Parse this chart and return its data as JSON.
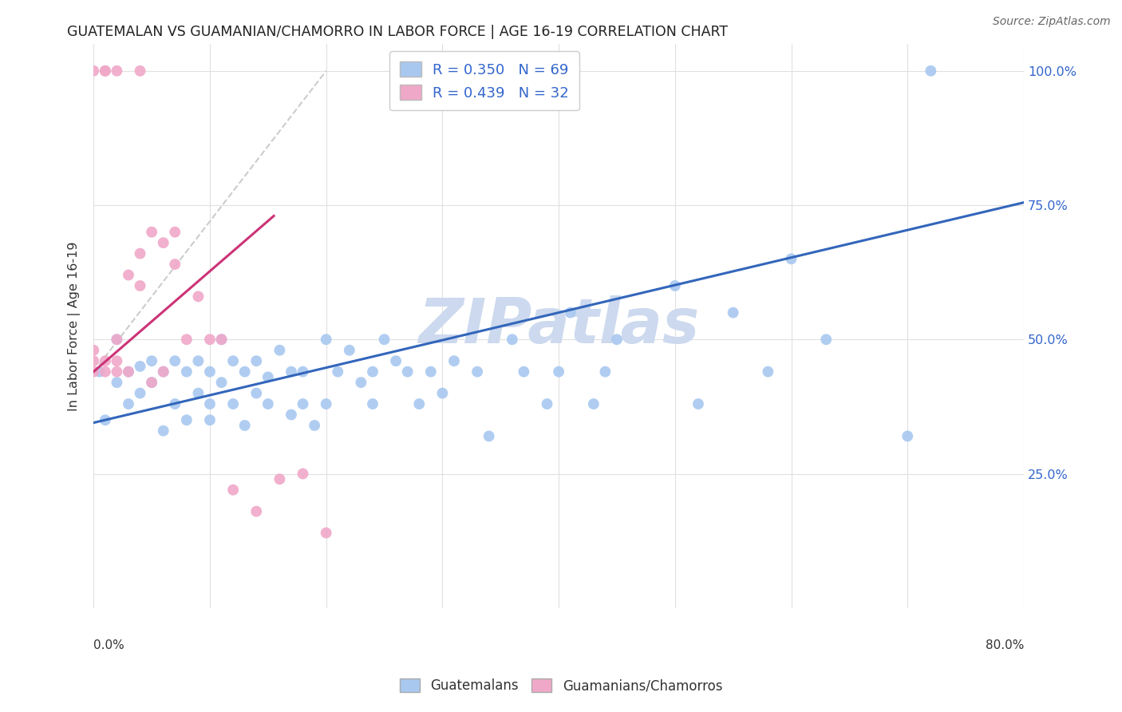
{
  "title": "GUATEMALAN VS GUAMANIAN/CHAMORRO IN LABOR FORCE | AGE 16-19 CORRELATION CHART",
  "source": "Source: ZipAtlas.com",
  "ylabel": "In Labor Force | Age 16-19",
  "xlim": [
    0.0,
    0.8
  ],
  "ylim": [
    0.0,
    1.05
  ],
  "ytick_positions": [
    0.0,
    0.25,
    0.5,
    0.75,
    1.0
  ],
  "ytick_labels": [
    "",
    "25.0%",
    "50.0%",
    "75.0%",
    "100.0%"
  ],
  "background_color": "#ffffff",
  "grid_color": "#e0e0e0",
  "watermark_text": "ZIPatlas",
  "watermark_color": "#ccd9ee",
  "blue_R": 0.35,
  "blue_N": 69,
  "pink_R": 0.439,
  "pink_N": 32,
  "blue_color": "#a8c8f0",
  "pink_color": "#f0a8c8",
  "blue_line_color": "#3366bb",
  "pink_line_color": "#cc3377",
  "dash_line_color": "#cccccc",
  "blue_scatter_x": [
    0.005,
    0.01,
    0.02,
    0.02,
    0.03,
    0.03,
    0.04,
    0.04,
    0.05,
    0.05,
    0.06,
    0.06,
    0.07,
    0.07,
    0.08,
    0.08,
    0.09,
    0.09,
    0.1,
    0.1,
    0.1,
    0.11,
    0.11,
    0.12,
    0.12,
    0.13,
    0.13,
    0.14,
    0.14,
    0.15,
    0.15,
    0.16,
    0.17,
    0.17,
    0.18,
    0.18,
    0.19,
    0.2,
    0.2,
    0.21,
    0.22,
    0.23,
    0.24,
    0.24,
    0.25,
    0.26,
    0.27,
    0.28,
    0.29,
    0.3,
    0.31,
    0.33,
    0.34,
    0.36,
    0.37,
    0.39,
    0.4,
    0.41,
    0.43,
    0.44,
    0.45,
    0.5,
    0.52,
    0.55,
    0.58,
    0.6,
    0.63,
    0.7,
    0.72
  ],
  "blue_scatter_y": [
    0.44,
    0.35,
    0.42,
    0.5,
    0.38,
    0.44,
    0.4,
    0.45,
    0.42,
    0.46,
    0.33,
    0.44,
    0.38,
    0.46,
    0.35,
    0.44,
    0.4,
    0.46,
    0.38,
    0.44,
    0.35,
    0.42,
    0.5,
    0.38,
    0.46,
    0.44,
    0.34,
    0.46,
    0.4,
    0.43,
    0.38,
    0.48,
    0.44,
    0.36,
    0.44,
    0.38,
    0.34,
    0.5,
    0.38,
    0.44,
    0.48,
    0.42,
    0.44,
    0.38,
    0.5,
    0.46,
    0.44,
    0.38,
    0.44,
    0.4,
    0.46,
    0.44,
    0.32,
    0.5,
    0.44,
    0.38,
    0.44,
    0.55,
    0.38,
    0.44,
    0.5,
    0.6,
    0.38,
    0.55,
    0.44,
    0.65,
    0.5,
    0.32,
    1.0
  ],
  "pink_scatter_x": [
    0.0,
    0.0,
    0.0,
    0.0,
    0.01,
    0.01,
    0.01,
    0.01,
    0.02,
    0.02,
    0.02,
    0.02,
    0.03,
    0.03,
    0.04,
    0.04,
    0.04,
    0.05,
    0.05,
    0.06,
    0.06,
    0.07,
    0.07,
    0.08,
    0.09,
    0.1,
    0.11,
    0.12,
    0.14,
    0.16,
    0.18,
    0.2
  ],
  "pink_scatter_y": [
    0.44,
    0.46,
    0.48,
    1.0,
    0.44,
    0.46,
    1.0,
    1.0,
    0.44,
    0.46,
    0.5,
    1.0,
    0.44,
    0.62,
    0.6,
    0.66,
    1.0,
    0.42,
    0.7,
    0.44,
    0.68,
    0.64,
    0.7,
    0.5,
    0.58,
    0.5,
    0.5,
    0.22,
    0.18,
    0.24,
    0.25,
    0.14
  ],
  "blue_line_x0": 0.0,
  "blue_line_x1": 0.8,
  "blue_line_y0": 0.345,
  "blue_line_y1": 0.755,
  "pink_line_x0": 0.0,
  "pink_line_x1": 0.155,
  "pink_line_y0": 0.44,
  "pink_line_y1": 0.73,
  "dash_line_x0": 0.0,
  "dash_line_x1": 0.2,
  "dash_line_y0": 0.44,
  "dash_line_y1": 1.0
}
